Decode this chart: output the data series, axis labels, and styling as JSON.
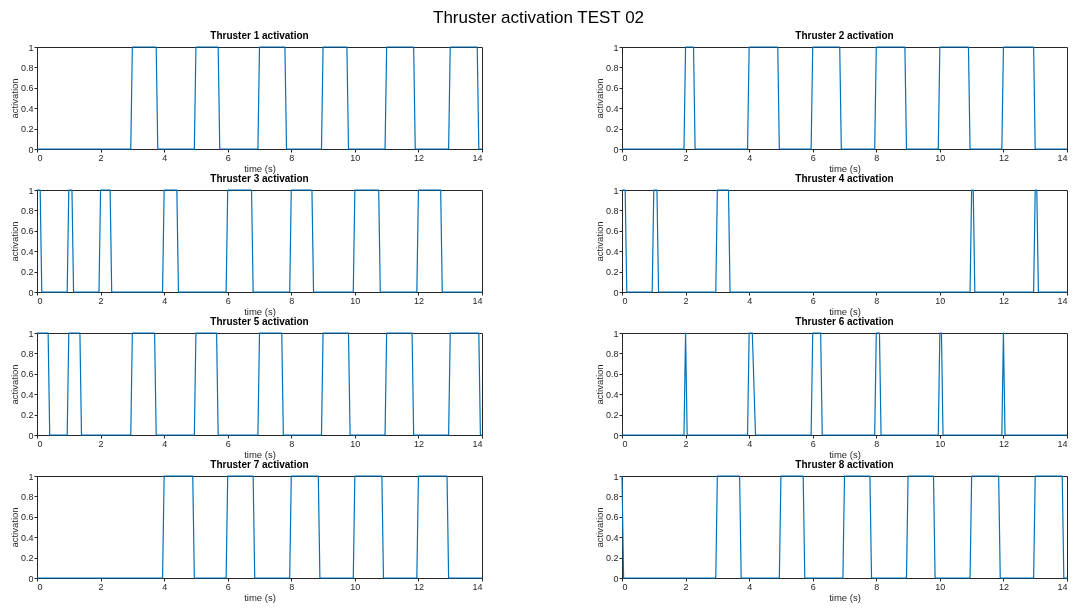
{
  "chart_data": [
    {
      "type": "line",
      "title": "Thruster 1 activation",
      "annotations": [
        "Thruster activation TEST 02"
      ],
      "xlabel": "time (s)",
      "ylabel": "activation",
      "color": "#0072bd",
      "xlim": [
        0,
        14
      ],
      "xticks": [
        0,
        2,
        4,
        6,
        8,
        10,
        12,
        14
      ],
      "ylim": [
        0,
        1
      ],
      "yticks": [
        0,
        0.2,
        0.4,
        0.6,
        0.8,
        1
      ],
      "grid": false,
      "x": [
        0,
        2.95,
        3.0,
        3.75,
        3.8,
        4.95,
        5.0,
        5.7,
        5.75,
        6.95,
        7.0,
        7.8,
        7.85,
        8.95,
        9.0,
        9.75,
        9.8,
        10.95,
        11.0,
        11.85,
        11.9,
        12.95,
        13.0,
        13.85,
        13.9,
        14
      ],
      "values": [
        0,
        0,
        1,
        1,
        0,
        0,
        1,
        1,
        0,
        0,
        1,
        1,
        0,
        0,
        1,
        1,
        0,
        0,
        1,
        1,
        0,
        0,
        1,
        1,
        0,
        0
      ]
    },
    {
      "type": "line",
      "title": "Thruster 2 activation",
      "xlabel": "time (s)",
      "ylabel": "activation",
      "color": "#0072bd",
      "xlim": [
        0,
        14
      ],
      "xticks": [
        0,
        2,
        4,
        6,
        8,
        10,
        12,
        14
      ],
      "ylim": [
        0,
        1
      ],
      "yticks": [
        0,
        0.2,
        0.4,
        0.6,
        0.8,
        1
      ],
      "grid": false,
      "x": [
        0,
        1.95,
        2.0,
        2.25,
        2.3,
        3.95,
        4.0,
        4.9,
        4.95,
        5.95,
        6.0,
        6.85,
        6.9,
        7.95,
        8.0,
        8.9,
        8.95,
        9.95,
        10.0,
        10.9,
        10.95,
        11.95,
        12.0,
        12.95,
        13.0,
        14
      ],
      "values": [
        0,
        0,
        1,
        1,
        0,
        0,
        1,
        1,
        0,
        0,
        1,
        1,
        0,
        0,
        1,
        1,
        0,
        0,
        1,
        1,
        0,
        0,
        1,
        1,
        0,
        0
      ]
    },
    {
      "type": "line",
      "title": "Thruster 3 activation",
      "xlabel": "time (s)",
      "ylabel": "activation",
      "color": "#0072bd",
      "xlim": [
        0,
        14
      ],
      "xticks": [
        0,
        2,
        4,
        6,
        8,
        10,
        12,
        14
      ],
      "ylim": [
        0,
        1
      ],
      "yticks": [
        0,
        0.2,
        0.4,
        0.6,
        0.8,
        1
      ],
      "grid": false,
      "x": [
        0,
        0.1,
        0.15,
        0.95,
        1.0,
        1.1,
        1.15,
        1.95,
        2.0,
        2.3,
        2.35,
        3.95,
        4.0,
        4.4,
        4.45,
        5.95,
        6.0,
        6.75,
        6.8,
        7.95,
        8.0,
        8.65,
        8.7,
        9.95,
        10.0,
        10.75,
        10.8,
        11.95,
        12.0,
        12.7,
        12.75,
        14
      ],
      "values": [
        1,
        1,
        0,
        0,
        1,
        1,
        0,
        0,
        1,
        1,
        0,
        0,
        1,
        1,
        0,
        0,
        1,
        1,
        0,
        0,
        1,
        1,
        0,
        0,
        1,
        1,
        0,
        0,
        1,
        1,
        0,
        0
      ]
    },
    {
      "type": "line",
      "title": "Thruster 4 activation",
      "xlabel": "time (s)",
      "ylabel": "activation",
      "color": "#0072bd",
      "xlim": [
        0,
        14
      ],
      "xticks": [
        0,
        2,
        4,
        6,
        8,
        10,
        12,
        14
      ],
      "ylim": [
        0,
        1
      ],
      "yticks": [
        0,
        0.2,
        0.4,
        0.6,
        0.8,
        1
      ],
      "grid": false,
      "x": [
        0,
        0.1,
        0.15,
        0.95,
        1.0,
        1.1,
        1.15,
        2.95,
        3.0,
        3.35,
        3.4,
        10.95,
        11.0,
        11.05,
        11.1,
        12.95,
        13.0,
        13.05,
        13.1,
        14
      ],
      "values": [
        1,
        1,
        0,
        0,
        1,
        1,
        0,
        0,
        1,
        1,
        0,
        0,
        1,
        1,
        0,
        0,
        1,
        1,
        0,
        0
      ]
    },
    {
      "type": "line",
      "title": "Thruster 5 activation",
      "xlabel": "time (s)",
      "ylabel": "activation",
      "color": "#0072bd",
      "xlim": [
        0,
        14
      ],
      "xticks": [
        0,
        2,
        4,
        6,
        8,
        10,
        12,
        14
      ],
      "ylim": [
        0,
        1
      ],
      "yticks": [
        0,
        0.2,
        0.4,
        0.6,
        0.8,
        1
      ],
      "grid": false,
      "x": [
        0,
        0.35,
        0.4,
        0.95,
        1.0,
        1.35,
        1.4,
        2.95,
        3.0,
        3.7,
        3.75,
        4.95,
        5.0,
        5.65,
        5.7,
        6.95,
        7.0,
        7.7,
        7.75,
        8.95,
        9.0,
        9.8,
        9.85,
        10.95,
        11.0,
        11.8,
        11.85,
        12.95,
        13.0,
        13.9,
        13.95,
        14
      ],
      "values": [
        1,
        1,
        0,
        0,
        1,
        1,
        0,
        0,
        1,
        1,
        0,
        0,
        1,
        1,
        0,
        0,
        1,
        1,
        0,
        0,
        1,
        1,
        0,
        0,
        1,
        1,
        0,
        0,
        1,
        1,
        0,
        0
      ]
    },
    {
      "type": "line",
      "title": "Thruster 6 activation",
      "xlabel": "time (s)",
      "ylabel": "activation",
      "color": "#0072bd",
      "xlim": [
        0,
        14
      ],
      "xticks": [
        0,
        2,
        4,
        6,
        8,
        10,
        12,
        14
      ],
      "ylim": [
        0,
        1
      ],
      "yticks": [
        0,
        0.2,
        0.4,
        0.6,
        0.8,
        1
      ],
      "grid": false,
      "x": [
        0,
        1.95,
        2.0,
        2.05,
        3.95,
        4.0,
        4.1,
        4.2,
        5.95,
        6.0,
        6.25,
        6.3,
        7.95,
        8.0,
        8.1,
        8.15,
        9.95,
        10.0,
        10.05,
        10.1,
        11.95,
        12.0,
        12.05,
        14
      ],
      "values": [
        0,
        0,
        1,
        0,
        0,
        1,
        1,
        0,
        0,
        1,
        1,
        0,
        0,
        1,
        1,
        0,
        0,
        1,
        1,
        0,
        0,
        1,
        0,
        0
      ]
    },
    {
      "type": "line",
      "title": "Thruster 7 activation",
      "xlabel": "time (s)",
      "ylabel": "activation",
      "color": "#0072bd",
      "xlim": [
        0,
        14
      ],
      "xticks": [
        0,
        2,
        4,
        6,
        8,
        10,
        12,
        14
      ],
      "ylim": [
        0,
        1
      ],
      "yticks": [
        0,
        0.2,
        0.4,
        0.6,
        0.8,
        1
      ],
      "grid": false,
      "x": [
        0,
        3.95,
        4.0,
        4.9,
        4.95,
        5.95,
        6.0,
        6.8,
        6.85,
        7.95,
        8.0,
        8.85,
        8.9,
        9.95,
        10.0,
        10.85,
        10.9,
        11.95,
        12.0,
        12.9,
        12.95,
        14
      ],
      "values": [
        0,
        0,
        1,
        1,
        0,
        0,
        1,
        1,
        0,
        0,
        1,
        1,
        0,
        0,
        1,
        1,
        0,
        0,
        1,
        1,
        0,
        0
      ]
    },
    {
      "type": "line",
      "title": "Thruster 8 activation",
      "xlabel": "time (s)",
      "ylabel": "activation",
      "color": "#0072bd",
      "xlim": [
        0,
        14
      ],
      "xticks": [
        0,
        2,
        4,
        6,
        8,
        10,
        12,
        14
      ],
      "ylim": [
        0,
        1
      ],
      "yticks": [
        0,
        0.2,
        0.4,
        0.6,
        0.8,
        1
      ],
      "grid": false,
      "x": [
        0,
        0.05,
        2.95,
        3.0,
        3.7,
        3.75,
        4.95,
        5.0,
        5.7,
        5.75,
        6.95,
        7.0,
        7.8,
        7.85,
        8.95,
        9.0,
        9.8,
        9.85,
        10.95,
        11.0,
        11.85,
        11.9,
        12.95,
        13.0,
        13.85,
        13.9,
        14
      ],
      "values": [
        1,
        0,
        0,
        1,
        1,
        0,
        0,
        1,
        1,
        0,
        0,
        1,
        1,
        0,
        0,
        1,
        1,
        0,
        0,
        1,
        1,
        0,
        0,
        1,
        1,
        0,
        0
      ]
    }
  ]
}
